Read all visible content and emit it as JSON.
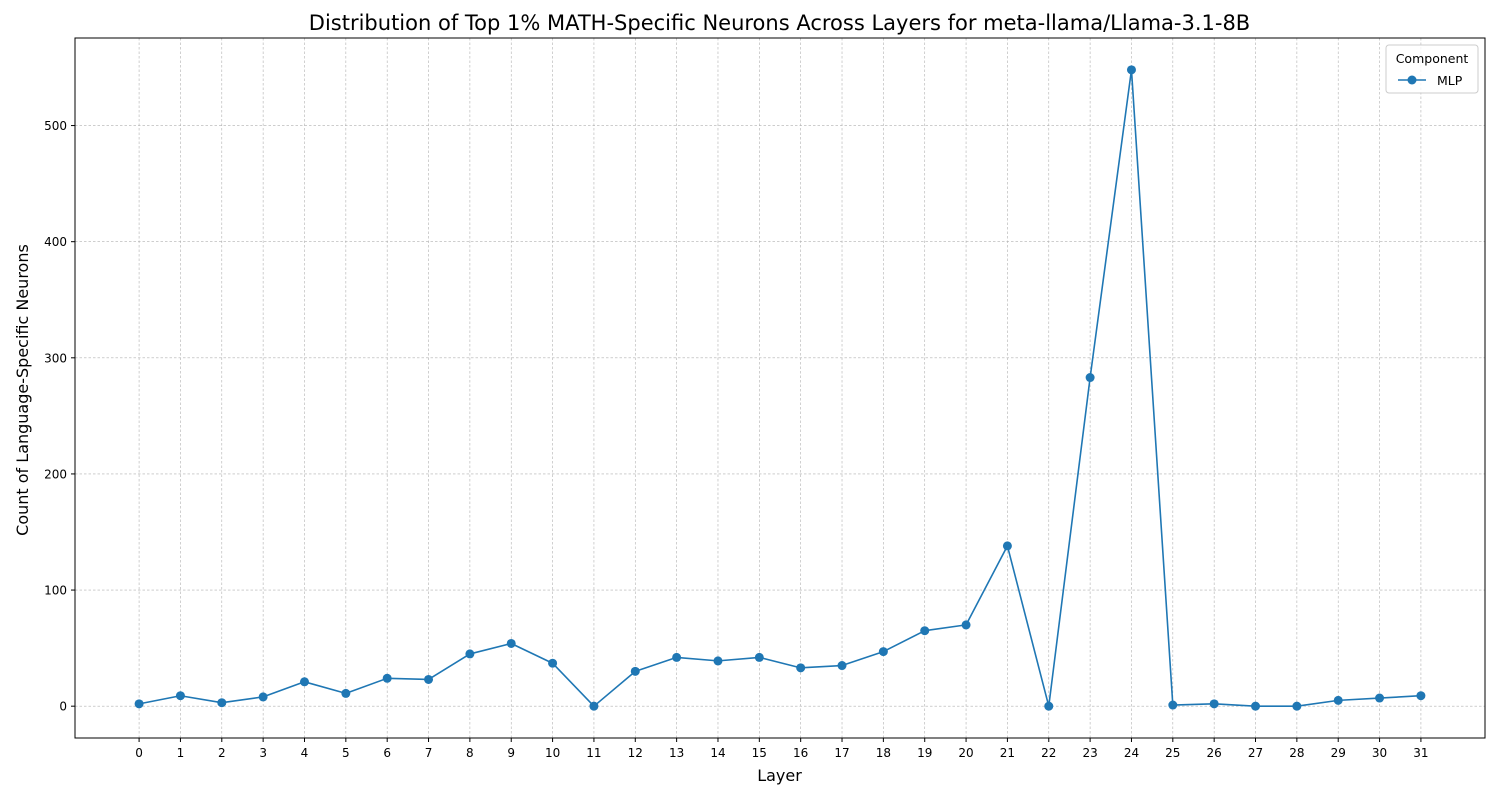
{
  "chart_data": {
    "type": "line",
    "title": "Distribution of Top 1% MATH-Specific Neurons Across Layers for meta-llama/Llama-3.1-8B",
    "xlabel": "Layer",
    "ylabel": "Count of Language-Specific Neurons",
    "x": [
      0,
      1,
      2,
      3,
      4,
      5,
      6,
      7,
      8,
      9,
      10,
      11,
      12,
      13,
      14,
      15,
      16,
      17,
      18,
      19,
      20,
      21,
      22,
      23,
      24,
      25,
      26,
      27,
      28,
      29,
      30,
      31
    ],
    "series": [
      {
        "name": "MLP",
        "color": "#1f77b4",
        "marker": "circle",
        "values": [
          2,
          9,
          3,
          8,
          21,
          11,
          24,
          23,
          45,
          54,
          37,
          0,
          30,
          42,
          39,
          42,
          33,
          35,
          47,
          65,
          70,
          138,
          0,
          283,
          548,
          1,
          2,
          0,
          0,
          5,
          7,
          9
        ]
      }
    ],
    "xlim": [
      -1.55,
      32.55
    ],
    "ylim": [
      -27.4,
      575.4
    ],
    "y_ticks": [
      0,
      100,
      200,
      300,
      400,
      500
    ],
    "x_tick_labels": [
      "0",
      "1",
      "2",
      "3",
      "4",
      "5",
      "6",
      "7",
      "8",
      "9",
      "10",
      "11",
      "12",
      "13",
      "14",
      "15",
      "16",
      "17",
      "18",
      "19",
      "20",
      "21",
      "22",
      "23",
      "24",
      "25",
      "26",
      "27",
      "28",
      "29",
      "30",
      "31"
    ],
    "grid": true,
    "legend": {
      "title": "Component",
      "position": "top-right",
      "entries": [
        "MLP"
      ]
    }
  }
}
